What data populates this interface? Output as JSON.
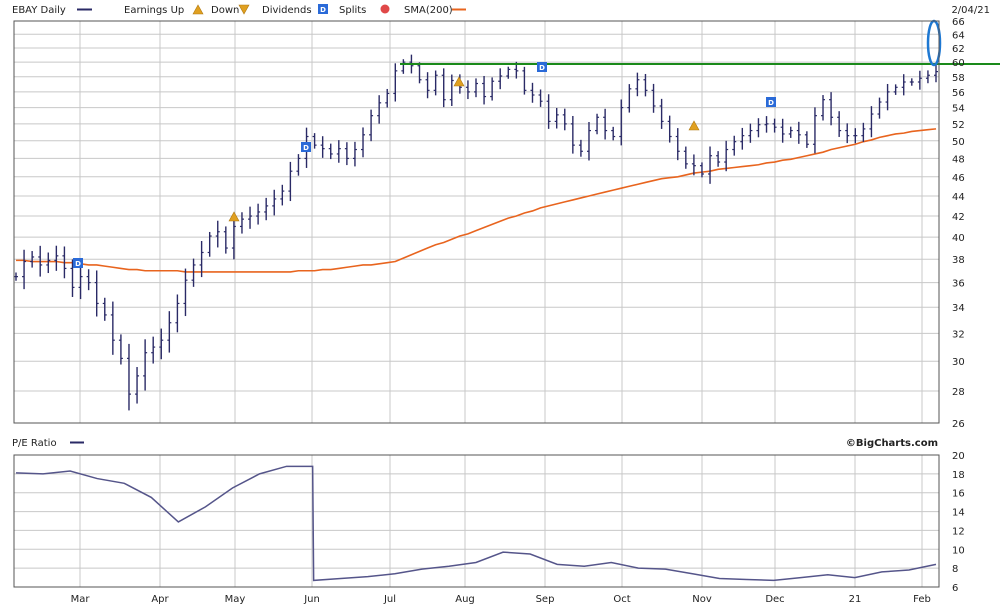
{
  "header": {
    "ticker_label": "EBAY Daily",
    "earnings_label": "Earnings Up",
    "down_label": "Down",
    "dividends_label": "Dividends",
    "dividend_marker": "D",
    "splits_label": "Splits",
    "sma_label": "SMA(200)",
    "date": "2/04/21"
  },
  "pe_panel": {
    "label": "P/E Ratio",
    "credit": "©BigCharts.com"
  },
  "colors": {
    "price_bars": "#2a2a66",
    "sma": "#e8641e",
    "resistance": "#1a8a1a",
    "pe_line": "#55558a",
    "grid": "#c8c8c8",
    "dividend_marker": "#2a6ad8",
    "earnings_marker": "#e0a020",
    "highlight_ellipse": "#1e78d2"
  },
  "chart_data": [
    {
      "type": "ohlc",
      "series": [
        {
          "name": "EBAY Daily",
          "x": [
            "Feb",
            "Feb",
            "Feb",
            "Mar",
            "Mar",
            "Mar",
            "Mar",
            "Mar",
            "Mar",
            "Mar",
            "Mar",
            "Mar",
            "Mar",
            "Mar",
            "Mar",
            "Mar",
            "Mar",
            "Apr",
            "Apr",
            "Apr",
            "Apr",
            "Apr",
            "Apr",
            "Apr",
            "Apr",
            "Apr",
            "Apr",
            "Apr",
            "Apr",
            "Apr",
            "May",
            "May",
            "May",
            "May",
            "May",
            "May",
            "May",
            "May",
            "May",
            "Jun",
            "Jun",
            "Jun",
            "Jun",
            "Jun",
            "Jun",
            "Jun",
            "Jun",
            "Jun",
            "Jul",
            "Jul",
            "Jul",
            "Jul",
            "Jul",
            "Jul",
            "Jul",
            "Jul",
            "Jul",
            "Jul",
            "Aug",
            "Aug",
            "Aug",
            "Aug",
            "Aug",
            "Aug",
            "Aug",
            "Aug",
            "Aug",
            "Sep",
            "Sep",
            "Sep",
            "Sep",
            "Sep",
            "Sep",
            "Sep",
            "Sep",
            "Sep",
            "Oct",
            "Oct",
            "Oct",
            "Oct",
            "Oct",
            "Oct",
            "Oct",
            "Oct",
            "Oct",
            "Nov",
            "Nov",
            "Nov",
            "Nov",
            "Nov",
            "Nov",
            "Nov",
            "Nov",
            "Nov",
            "Dec",
            "Dec",
            "Dec",
            "Dec",
            "Dec",
            "Dec",
            "Dec",
            "Dec",
            "Dec",
            "Jan",
            "Jan",
            "Jan",
            "Jan",
            "Jan",
            "Jan",
            "Jan",
            "Jan",
            "Jan",
            "Feb",
            "Feb",
            "Feb"
          ],
          "close": [
            36.5,
            37.8,
            38.2,
            37.5,
            37.9,
            38.3,
            37.2,
            35.6,
            36.5,
            36.0,
            34.3,
            33.4,
            31.5,
            30.2,
            27.8,
            29.0,
            30.6,
            31.0,
            31.5,
            32.8,
            34.3,
            36.2,
            37.5,
            38.6,
            40.1,
            40.5,
            39.0,
            41.0,
            41.7,
            42.0,
            42.4,
            43.0,
            43.7,
            44.5,
            46.6,
            48.0,
            50.5,
            49.5,
            49.1,
            48.5,
            49.1,
            48.0,
            49.0,
            50.7,
            53.0,
            54.6,
            55.8,
            58.8,
            60.0,
            59.5,
            57.6,
            56.2,
            58.2,
            55.0,
            57.5,
            56.6,
            56.0,
            57.1,
            55.4,
            57.4,
            58.1,
            59.0,
            58.8,
            56.2,
            55.6,
            54.8,
            52.3,
            53.1,
            52.0,
            49.5,
            48.8,
            51.2,
            52.8,
            51.2,
            50.5,
            54.0,
            56.4,
            57.6,
            56.2,
            54.2,
            52.3,
            50.5,
            48.8,
            47.4,
            47.2,
            46.3,
            48.3,
            47.6,
            49.0,
            49.9,
            50.6,
            51.2,
            51.9,
            52.0,
            51.6,
            50.8,
            51.2,
            50.7,
            49.6,
            53.0,
            55.0,
            52.8,
            51.2,
            50.6,
            50.6,
            51.4,
            53.2,
            54.7,
            56.0,
            56.6,
            57.3,
            57.3,
            57.8,
            58.2,
            58.7
          ],
          "sma": [
            37.9,
            37.9,
            37.8,
            37.8,
            37.8,
            37.8,
            37.7,
            37.7,
            37.6,
            37.5,
            37.5,
            37.4,
            37.3,
            37.2,
            37.1,
            37.1,
            37.0,
            37.0,
            37.0,
            37.0,
            37.0,
            36.9,
            36.9,
            36.9,
            36.9,
            36.9,
            36.9,
            36.9,
            36.9,
            36.9,
            36.9,
            36.9,
            36.9,
            36.9,
            36.9,
            37.0,
            37.0,
            37.0,
            37.1,
            37.1,
            37.2,
            37.3,
            37.4,
            37.5,
            37.5,
            37.6,
            37.7,
            37.8,
            38.1,
            38.4,
            38.7,
            39.0,
            39.3,
            39.5,
            39.8,
            40.1,
            40.3,
            40.6,
            40.9,
            41.2,
            41.5,
            41.8,
            42.0,
            42.3,
            42.5,
            42.8,
            43.0,
            43.2,
            43.4,
            43.6,
            43.8,
            44.0,
            44.2,
            44.4,
            44.6,
            44.8,
            45.0,
            45.2,
            45.4,
            45.6,
            45.8,
            45.9,
            46.0,
            46.2,
            46.4,
            46.5,
            46.6,
            46.8,
            46.9,
            47.0,
            47.1,
            47.2,
            47.3,
            47.5,
            47.6,
            47.8,
            47.9,
            48.1,
            48.3,
            48.5,
            48.7,
            49.0,
            49.2,
            49.4,
            49.6,
            49.9,
            50.1,
            50.4,
            50.6,
            50.8,
            50.9,
            51.1,
            51.2,
            51.3,
            51.4
          ]
        }
      ],
      "resistance_level": 60,
      "dividend_markers": [
        "Feb",
        "May",
        "Aug",
        "Nov"
      ],
      "earnings_markers": [
        "Apr",
        "Jul",
        "Oct"
      ],
      "x_tick_labels": [
        "Mar",
        "Apr",
        "May",
        "Jun",
        "Jul",
        "Aug",
        "Sep",
        "Oct",
        "Nov",
        "Dec",
        "21",
        "Feb"
      ],
      "y_tick_labels": [
        "66",
        "64",
        "62",
        "60",
        "58",
        "56",
        "54",
        "52",
        "50",
        "48",
        "46",
        "44",
        "42",
        "40",
        "38",
        "36",
        "34",
        "32",
        "30",
        "28",
        "26"
      ],
      "y_scale": "log",
      "ylim": [
        26,
        66
      ],
      "grid": true
    },
    {
      "type": "line",
      "series": [
        {
          "name": "P/E Ratio",
          "x": [
            "Feb",
            "Feb",
            "Mar",
            "Mar",
            "Mar",
            "Mar",
            "Apr",
            "Apr",
            "Apr",
            "Apr",
            "Apr",
            "May",
            "May",
            "May",
            "May",
            "Jun",
            "Jun",
            "Jul",
            "Jul",
            "Jul",
            "Aug",
            "Aug",
            "Sep",
            "Sep",
            "Oct",
            "Oct",
            "Nov",
            "Nov",
            "Nov",
            "Dec",
            "Dec",
            "Jan",
            "Jan",
            "Feb",
            "Feb"
          ],
          "values": [
            18.1,
            18.0,
            18.3,
            17.5,
            17.0,
            15.5,
            12.9,
            14.5,
            16.5,
            18.0,
            18.8,
            6.7,
            6.9,
            7.1,
            7.4,
            7.9,
            8.2,
            8.6,
            9.7,
            9.5,
            8.4,
            8.2,
            8.6,
            8.0,
            7.9,
            7.4,
            6.9,
            6.8,
            6.7,
            7.0,
            7.3,
            7.0,
            7.6,
            7.8,
            8.4
          ]
        }
      ],
      "y_tick_labels": [
        "20",
        "18",
        "16",
        "14",
        "12",
        "10",
        "8",
        "6"
      ],
      "ylim": [
        6,
        20
      ],
      "grid": true
    }
  ]
}
